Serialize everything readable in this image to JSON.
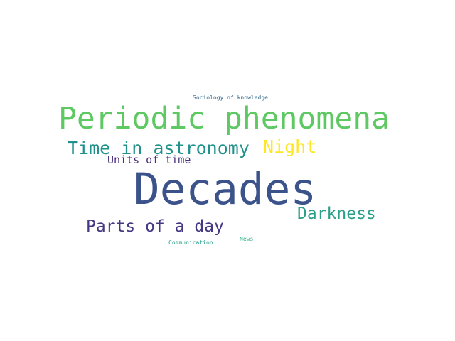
{
  "words": [
    {
      "text": "Decades",
      "color": "#3b528b"
    },
    {
      "text": "Periodic phenomena",
      "color": "#5ec962"
    },
    {
      "text": "Time in astronomy",
      "color": "#21918c"
    },
    {
      "text": "Night",
      "color": "#fde725"
    },
    {
      "text": "Units of time",
      "color": "#472d7b"
    },
    {
      "text": "Darkness",
      "color": "#2a9f8a"
    },
    {
      "text": "Parts of a day",
      "color": "#443983"
    },
    {
      "text": "Sociology of knowledge",
      "color": "#31688e"
    },
    {
      "text": "Communication",
      "color": "#23a08a"
    },
    {
      "text": "News",
      "color": "#28ae80"
    }
  ]
}
